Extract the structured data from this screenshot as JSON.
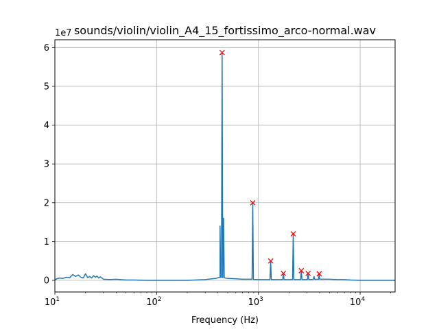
{
  "chart_data": {
    "type": "line",
    "title": "sounds/violin/violin_A4_15_fortissimo_arco-normal.wav",
    "xlabel": "Frequency (Hz)",
    "ylabel": "",
    "x_scale": "log",
    "xlim": [
      10,
      22050
    ],
    "ylim": [
      -0.3,
      6.2
    ],
    "y_multiplier": "1e7",
    "grid": true,
    "x_ticks": [
      {
        "value": 10,
        "base": "10",
        "exp": "1"
      },
      {
        "value": 100,
        "base": "10",
        "exp": "2"
      },
      {
        "value": 1000,
        "base": "10",
        "exp": "3"
      },
      {
        "value": 10000,
        "base": "10",
        "exp": "4"
      }
    ],
    "y_ticks": [
      {
        "value": 0,
        "label": "0"
      },
      {
        "value": 1,
        "label": "1"
      },
      {
        "value": 2,
        "label": "2"
      },
      {
        "value": 3,
        "label": "3"
      },
      {
        "value": 4,
        "label": "4"
      },
      {
        "value": 5,
        "label": "5"
      },
      {
        "value": 6,
        "label": "6"
      }
    ],
    "spectrum": {
      "color": "#1f77b4",
      "baseline": [
        [
          10,
          0.02
        ],
        [
          11,
          0.06
        ],
        [
          12,
          0.05
        ],
        [
          13,
          0.08
        ],
        [
          14,
          0.07
        ],
        [
          15,
          0.15
        ],
        [
          16,
          0.1
        ],
        [
          17,
          0.14
        ],
        [
          18,
          0.08
        ],
        [
          19,
          0.06
        ],
        [
          20,
          0.17
        ],
        [
          21,
          0.07
        ],
        [
          22,
          0.1
        ],
        [
          23,
          0.06
        ],
        [
          24,
          0.12
        ],
        [
          25,
          0.08
        ],
        [
          26,
          0.11
        ],
        [
          27,
          0.06
        ],
        [
          28,
          0.09
        ],
        [
          30,
          0.03
        ],
        [
          35,
          0.02
        ],
        [
          40,
          0.03
        ],
        [
          50,
          0.01
        ],
        [
          60,
          0.01
        ],
        [
          80,
          0.0
        ],
        [
          100,
          0.0
        ],
        [
          150,
          0.0
        ],
        [
          200,
          0.0
        ],
        [
          300,
          0.02
        ],
        [
          380,
          0.05
        ],
        [
          420,
          0.08
        ],
        [
          500,
          0.05
        ],
        [
          600,
          0.04
        ],
        [
          700,
          0.03
        ],
        [
          800,
          0.03
        ],
        [
          1000,
          0.02
        ],
        [
          1200,
          0.02
        ],
        [
          1500,
          0.02
        ],
        [
          2000,
          0.02
        ],
        [
          2500,
          0.02
        ],
        [
          3000,
          0.02
        ],
        [
          4000,
          0.03
        ],
        [
          5000,
          0.03
        ],
        [
          6000,
          0.02
        ],
        [
          7000,
          0.02
        ],
        [
          8000,
          0.01
        ],
        [
          10000,
          0.0
        ],
        [
          15000,
          0.0
        ],
        [
          22050,
          0.0
        ]
      ],
      "peaks": [
        {
          "x": 420,
          "y": 1.4
        },
        {
          "x": 440,
          "y": 5.87
        },
        {
          "x": 455,
          "y": 1.6
        },
        {
          "x": 880,
          "y": 2.0
        },
        {
          "x": 1320,
          "y": 0.5
        },
        {
          "x": 1760,
          "y": 0.18
        },
        {
          "x": 2200,
          "y": 1.2
        },
        {
          "x": 2640,
          "y": 0.25
        },
        {
          "x": 3080,
          "y": 0.18
        },
        {
          "x": 3520,
          "y": 0.1
        },
        {
          "x": 3960,
          "y": 0.17
        }
      ]
    },
    "markers": {
      "color": "#ff0000",
      "points": [
        {
          "x": 440,
          "y": 5.87
        },
        {
          "x": 880,
          "y": 2.0
        },
        {
          "x": 1320,
          "y": 0.5
        },
        {
          "x": 1760,
          "y": 0.18
        },
        {
          "x": 2200,
          "y": 1.2
        },
        {
          "x": 2640,
          "y": 0.25
        },
        {
          "x": 3080,
          "y": 0.18
        },
        {
          "x": 3960,
          "y": 0.17
        }
      ]
    }
  }
}
